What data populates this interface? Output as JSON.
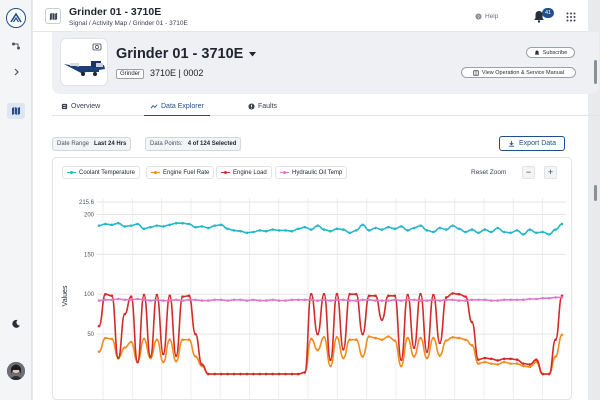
{
  "rail": {
    "icons": [
      "app-logo-icon",
      "route-icon",
      "chevron-right-icon",
      "map-icon",
      "theme-toggle-icon"
    ]
  },
  "header": {
    "title": "Grinder 01 - 3710E",
    "breadcrumb": "Signal / Activity Map / Grinder 01 - 3710E",
    "help_label": "Help",
    "notification_count": "41"
  },
  "asset": {
    "name": "Grinder 01 - 3710E",
    "type": "Grinder",
    "ids": "3710E | 0002",
    "subscribe_label": "Subscribe",
    "manual_label": "View Operation & Service Manual"
  },
  "tabs": [
    {
      "label": "Overview"
    },
    {
      "label": "Data Explorer"
    },
    {
      "label": "Faults"
    }
  ],
  "controls": {
    "date_range_label": "Date Range",
    "date_range_value": "Last 24 Hrs",
    "data_points_label": "Data Points:",
    "data_points_value": "4 of 124 Selected",
    "export_label": "Export Data"
  },
  "chart_controls": {
    "reset_zoom": "Reset Zoom",
    "zoom_out": "−",
    "zoom_in": "+"
  },
  "colors": {
    "accent": "#1f4f8c",
    "coolant": "#22b8c8",
    "fuel": "#f28c1e",
    "load": "#d42a2a",
    "hydraulic": "#e07ac8"
  },
  "chart_data": {
    "type": "line",
    "ylabel": "Values",
    "yticks": [
      "215.6",
      "200",
      "150",
      "100",
      "50"
    ],
    "ylim": [
      0,
      215.6
    ],
    "grid": true,
    "series": [
      {
        "name": "Coolant Temperature",
        "color": "#22b8c8",
        "values": [
          186,
          188,
          187,
          189,
          185,
          186,
          188,
          182,
          184,
          186,
          185,
          187,
          189,
          189,
          188,
          184,
          185,
          183,
          186,
          187,
          182,
          180,
          179,
          177,
          178,
          180,
          179,
          181,
          180,
          180,
          179,
          182,
          184,
          181,
          186,
          181,
          179,
          182,
          181,
          177,
          180,
          187,
          180,
          183,
          181,
          184,
          182,
          185,
          180,
          183,
          186,
          180,
          178,
          183,
          181,
          186,
          182,
          178,
          181,
          177,
          181,
          178,
          183,
          178,
          177,
          180,
          175,
          181,
          177,
          178,
          175,
          181,
          188
        ]
      },
      {
        "name": "Engine Fuel Rate",
        "color": "#f28c1e",
        "values": [
          28,
          45,
          44,
          20,
          33,
          40,
          15,
          44,
          20,
          43,
          15,
          43,
          16,
          43,
          43,
          22,
          10,
          0,
          0,
          0,
          0,
          0,
          0,
          0,
          0,
          0,
          0,
          0,
          0,
          0,
          0,
          0,
          2,
          44,
          30,
          46,
          10,
          46,
          20,
          43,
          43,
          22,
          47,
          45,
          43,
          47,
          42,
          10,
          45,
          22,
          45,
          20,
          45,
          23,
          42,
          46,
          45,
          43,
          36,
          13,
          15,
          13,
          12,
          15,
          13,
          13,
          10,
          9,
          15,
          0,
          0,
          22,
          49
        ]
      },
      {
        "name": "Engine Load",
        "color": "#d42a2a",
        "values": [
          60,
          100,
          98,
          20,
          75,
          97,
          15,
          99,
          22,
          99,
          25,
          98,
          23,
          97,
          98,
          50,
          12,
          0,
          0,
          0,
          0,
          0,
          0,
          0,
          0,
          0,
          0,
          0,
          0,
          0,
          0,
          0,
          2,
          100,
          50,
          100,
          18,
          100,
          31,
          100,
          100,
          50,
          98,
          98,
          68,
          98,
          98,
          18,
          99,
          33,
          100,
          28,
          99,
          39,
          96,
          101,
          100,
          97,
          65,
          18,
          20,
          19,
          17,
          19,
          19,
          18,
          13,
          12,
          18,
          0,
          0,
          43,
          98
        ]
      },
      {
        "name": "Hydraulic Oil Temp",
        "color": "#e07ac8",
        "values": [
          92,
          93,
          93,
          94,
          93,
          93,
          94,
          93,
          92,
          93,
          92,
          92,
          93,
          92,
          93,
          93,
          92,
          92,
          93,
          93,
          92,
          93,
          93,
          92,
          93,
          92,
          92,
          93,
          92,
          92,
          93,
          93,
          93,
          93,
          92,
          93,
          92,
          93,
          93,
          92,
          92,
          93,
          93,
          92,
          92,
          92,
          93,
          92,
          93,
          93,
          92,
          92,
          93,
          92,
          93,
          93,
          92,
          92,
          93,
          93,
          93,
          92,
          92,
          93,
          93,
          93,
          93,
          94,
          94,
          95,
          95,
          96,
          96
        ]
      }
    ]
  }
}
